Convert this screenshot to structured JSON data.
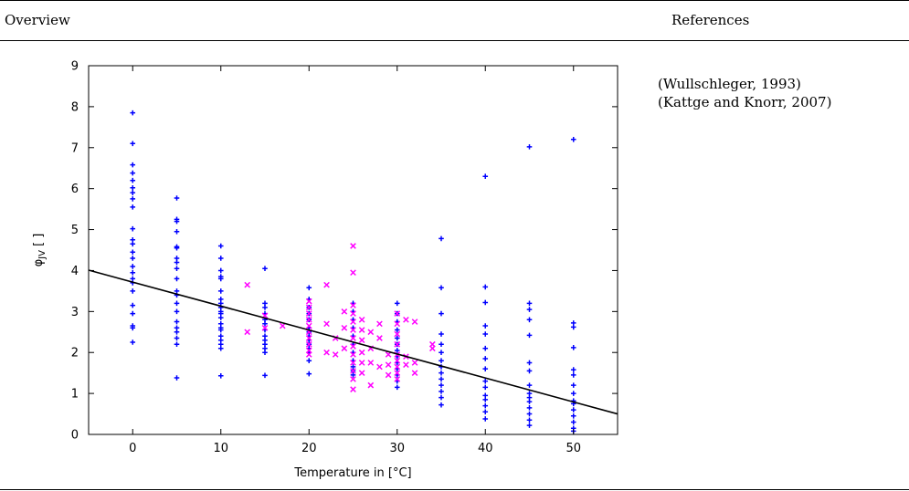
{
  "header": {
    "left": "Overview",
    "right": "References"
  },
  "references": [
    "(Wullschleger, 1993)",
    "(Kattge and Knorr, 2007)"
  ],
  "colors": {
    "series1": "#0000ff",
    "series2": "#ff00ff",
    "fit": "#000000"
  },
  "chart_data": {
    "type": "scatter",
    "xlabel": "Temperature in [°C]",
    "ylabel_main": "φ",
    "ylabel_sub": "JV",
    "ylabel_suffix": " [ ]",
    "xlim": [
      -5,
      55
    ],
    "ylim": [
      0,
      9
    ],
    "xticks": [
      0,
      10,
      20,
      30,
      40,
      50
    ],
    "yticks": [
      0,
      1,
      2,
      3,
      4,
      5,
      6,
      7,
      8,
      9
    ],
    "grid": false,
    "fit_line": {
      "x": [
        -5,
        55
      ],
      "y": [
        4.01,
        0.5
      ]
    },
    "series": [
      {
        "marker": "+",
        "color": "#0000ff",
        "x": [
          0,
          0,
          0,
          0,
          0,
          0,
          0,
          0,
          0,
          0,
          0,
          0,
          0,
          0,
          0,
          0,
          0,
          0,
          0,
          0,
          0,
          0,
          0,
          0,
          5,
          5,
          5,
          5,
          5,
          5,
          5,
          5,
          5,
          5,
          5,
          5,
          5,
          5,
          5,
          5,
          5,
          5,
          5,
          5,
          10,
          10,
          10,
          10,
          10,
          10,
          10,
          10,
          10,
          10,
          10,
          10,
          10,
          10,
          10,
          10,
          10,
          10,
          10,
          10,
          15,
          15,
          15,
          15,
          15,
          15,
          15,
          15,
          15,
          15,
          15,
          15,
          15,
          20,
          20,
          20,
          20,
          20,
          20,
          20,
          20,
          20,
          20,
          20,
          20,
          20,
          20,
          25,
          25,
          25,
          25,
          25,
          25,
          25,
          25,
          25,
          25,
          25,
          30,
          30,
          30,
          30,
          30,
          30,
          30,
          30,
          30,
          30,
          30,
          30,
          30,
          35,
          35,
          35,
          35,
          35,
          35,
          35,
          35,
          35,
          35,
          35,
          35,
          35,
          35,
          40,
          40,
          40,
          40,
          40,
          40,
          40,
          40,
          40,
          40,
          40,
          40,
          40,
          40,
          40,
          45,
          45,
          45,
          45,
          45,
          45,
          45,
          45,
          45,
          45,
          45,
          45,
          45,
          45,
          45,
          50,
          50,
          50,
          50,
          50,
          50,
          50,
          50,
          50,
          50,
          50,
          50,
          50,
          50,
          50
        ],
        "y": [
          7.85,
          7.1,
          6.58,
          6.38,
          6.2,
          6.02,
          5.9,
          5.75,
          5.55,
          5.02,
          4.75,
          4.65,
          4.45,
          4.3,
          4.1,
          3.95,
          3.8,
          3.7,
          3.5,
          3.15,
          2.95,
          2.65,
          2.6,
          2.25,
          5.77,
          5.25,
          5.2,
          4.95,
          4.58,
          4.55,
          4.3,
          4.2,
          4.05,
          3.8,
          3.5,
          3.4,
          3.2,
          3.0,
          2.75,
          2.6,
          2.5,
          2.35,
          2.2,
          1.38,
          4.6,
          4.3,
          4.0,
          3.85,
          3.8,
          3.5,
          3.3,
          3.2,
          3.1,
          2.95,
          2.85,
          2.7,
          2.55,
          2.4,
          2.3,
          2.2,
          2.1,
          1.43,
          3.0,
          2.6,
          4.05,
          3.2,
          3.1,
          2.95,
          2.8,
          2.7,
          2.55,
          2.4,
          2.3,
          2.2,
          2.1,
          2.0,
          1.44,
          3.58,
          3.3,
          3.1,
          2.95,
          2.8,
          2.6,
          2.5,
          2.4,
          2.3,
          2.2,
          2.1,
          2.0,
          1.8,
          1.48,
          3.2,
          3.0,
          2.8,
          2.6,
          2.4,
          2.2,
          2.0,
          1.8,
          1.65,
          1.55,
          1.45,
          3.2,
          2.95,
          2.75,
          2.55,
          2.35,
          2.2,
          2.05,
          1.9,
          1.75,
          1.6,
          1.45,
          1.3,
          1.15,
          4.78,
          3.58,
          2.95,
          2.45,
          2.2,
          2.0,
          1.8,
          1.65,
          1.5,
          1.35,
          1.2,
          1.05,
          0.9,
          0.72,
          6.3,
          3.6,
          3.22,
          2.65,
          2.45,
          2.1,
          1.85,
          1.6,
          1.3,
          1.15,
          0.95,
          0.85,
          0.7,
          0.55,
          0.38,
          7.02,
          3.2,
          3.05,
          2.8,
          2.42,
          1.75,
          1.55,
          1.2,
          1.0,
          0.9,
          0.8,
          0.65,
          0.5,
          0.35,
          0.22,
          7.2,
          2.72,
          2.62,
          2.12,
          1.58,
          1.45,
          1.2,
          1.0,
          0.82,
          0.75,
          0.6,
          0.45,
          0.3,
          0.15,
          0.08
        ]
      },
      {
        "marker": "x",
        "color": "#ff00ff",
        "x": [
          13,
          13,
          15,
          15,
          17,
          20,
          20,
          20,
          20,
          20,
          20,
          20,
          20,
          20,
          20,
          22,
          22,
          22,
          23,
          23,
          24,
          24,
          24,
          25,
          25,
          25,
          25,
          25,
          25,
          25,
          25,
          25,
          25,
          25,
          25,
          25,
          26,
          26,
          26,
          26,
          26,
          26,
          27,
          27,
          27,
          27,
          28,
          28,
          28,
          29,
          29,
          29,
          30,
          30,
          30,
          30,
          30,
          30,
          30,
          30,
          30,
          31,
          31,
          31,
          32,
          32,
          32,
          34,
          34
        ],
        "y": [
          3.65,
          2.5,
          2.9,
          2.6,
          2.65,
          3.25,
          3.1,
          2.95,
          2.8,
          2.65,
          2.5,
          2.35,
          2.2,
          2.05,
          1.95,
          3.65,
          2.7,
          2.0,
          2.35,
          1.95,
          3.0,
          2.6,
          2.1,
          4.6,
          3.95,
          3.15,
          2.95,
          2.75,
          2.55,
          2.35,
          2.15,
          1.95,
          1.75,
          1.55,
          1.35,
          1.1,
          2.8,
          2.55,
          2.3,
          2.0,
          1.75,
          1.5,
          2.5,
          2.1,
          1.75,
          1.2,
          2.7,
          2.35,
          1.65,
          1.95,
          1.7,
          1.45,
          2.95,
          2.7,
          2.45,
          2.2,
          1.95,
          1.8,
          1.65,
          1.5,
          1.35,
          2.8,
          1.9,
          1.7,
          2.75,
          1.75,
          1.5,
          2.2,
          2.1
        ]
      }
    ]
  }
}
